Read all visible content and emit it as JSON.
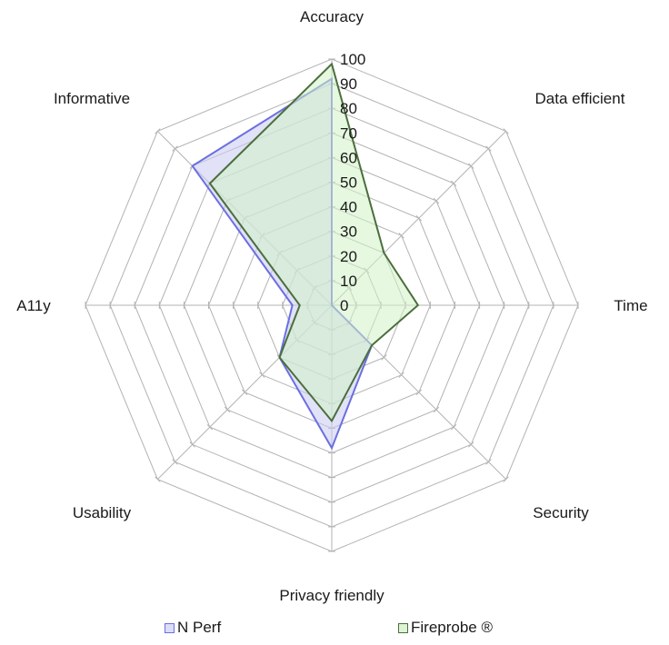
{
  "chart_data": {
    "type": "radar",
    "title": "",
    "categories": [
      "Accuracy",
      "Data efficient",
      "Time",
      "Security",
      "Privacy friendly",
      "Usability",
      "A11y",
      "Informative"
    ],
    "series": [
      {
        "name": "N Perf",
        "values": [
          92,
          0,
          0,
          23,
          58,
          30,
          16,
          80
        ],
        "line_color": "#6b6fe0",
        "fill_color": "#c9cbf2"
      },
      {
        "name": "Fireprobe ®",
        "values": [
          98,
          30,
          35,
          23,
          47,
          30,
          13,
          70
        ],
        "line_color": "#4b6e3c",
        "fill_color": "#d2f2c6"
      }
    ],
    "radial_ticks": [
      0,
      10,
      20,
      30,
      40,
      50,
      60,
      70,
      80,
      90,
      100
    ],
    "rlim": [
      0,
      100
    ],
    "grid": true,
    "grid_color": "#b3b3b3",
    "legend_position": "bottom"
  },
  "legend": {
    "items": [
      {
        "label": "N Perf",
        "swatch_fill": "#dcddf7",
        "swatch_border": "#6b6fe0"
      },
      {
        "label": "Fireprobe ®",
        "swatch_fill": "#dcf5d2",
        "swatch_border": "#4b6e3c"
      }
    ]
  }
}
